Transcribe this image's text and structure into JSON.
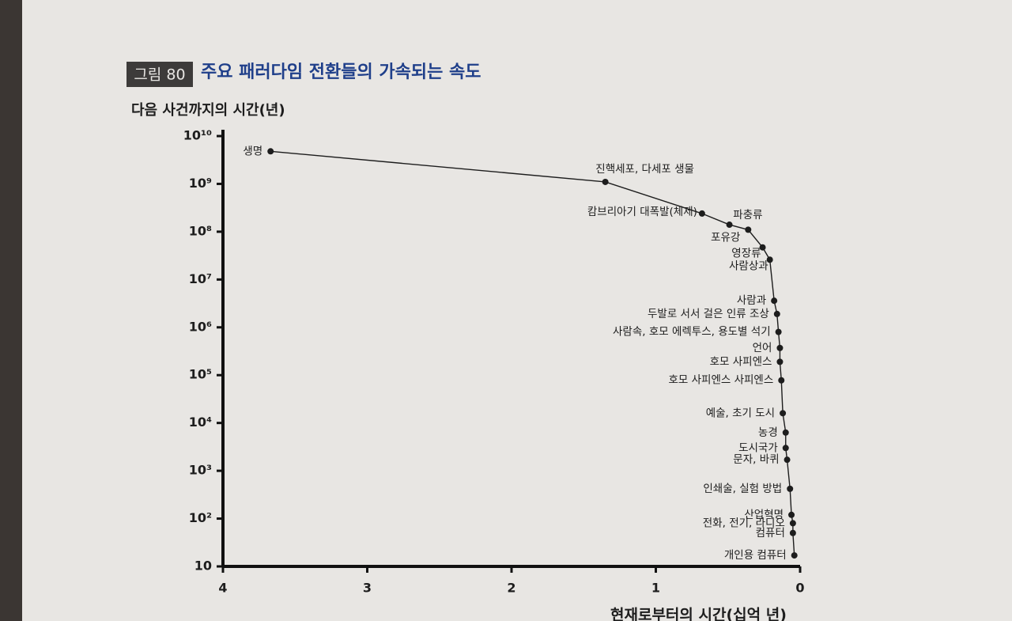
{
  "chart_data": {
    "type": "scatter",
    "figure_label": "그림 80",
    "title": "주요 패러다임 전환들의 가속되는 속도",
    "ylabel": "다음 사건까지의 시간(년)",
    "xlabel": "현재로부터의 시간(십억 년)",
    "log_y": true,
    "color": "#1d1d1d",
    "xlim": [
      4,
      0
    ],
    "xticks": [
      4,
      3,
      2,
      1,
      0
    ],
    "ylim": [
      10,
      10000000000
    ],
    "yticks": [
      10,
      {
        "value": 100,
        "label": "10²"
      },
      {
        "value": 1000,
        "label": "10³"
      },
      {
        "value": 10000,
        "label": "10⁴"
      },
      {
        "value": 100000,
        "label": "10⁵"
      },
      {
        "value": 1000000,
        "label": "10⁶"
      },
      {
        "value": 10000000,
        "label": "10⁷"
      },
      {
        "value": 100000000,
        "label": "10⁸"
      },
      {
        "value": 1000000000,
        "label": "10⁹"
      },
      {
        "value": 10000000000,
        "label": "10¹⁰"
      }
    ],
    "labels": [
      "생명",
      "진핵세포, 다세포 생물",
      "캄브리아기 대폭발(체제)",
      "파충류",
      "포유강",
      "영장류",
      "사람상과",
      "사람과",
      "두발로 서서 걸은 인류 조상",
      "사람속, 호모 에렉투스, 용도별 석기",
      "언어",
      "호모 사피엔스",
      "호모 사피엔스 사피엔스",
      "예술, 초기 도시",
      "농경",
      "도시국가",
      "문자, 바퀴",
      "인쇄술, 실험 방법",
      "산업혁명",
      "전화, 전기, 라디오",
      "컴퓨터",
      "개인용 컴퓨터"
    ],
    "x": [
      3.67,
      1.35,
      0.68,
      0.49,
      0.36,
      0.26,
      0.21,
      0.18,
      0.16,
      0.15,
      0.14,
      0.14,
      0.13,
      0.12,
      0.1,
      0.1,
      0.09,
      0.07,
      0.06,
      0.05,
      0.05,
      0.04
    ],
    "values": [
      4800000000,
      1100000000,
      240000000,
      140000000,
      110000000,
      47000000,
      26000000,
      3600000,
      1900000,
      800000,
      370000,
      190000,
      78000,
      16000,
      6300,
      3000,
      1700,
      420,
      120,
      80,
      50,
      17
    ]
  }
}
